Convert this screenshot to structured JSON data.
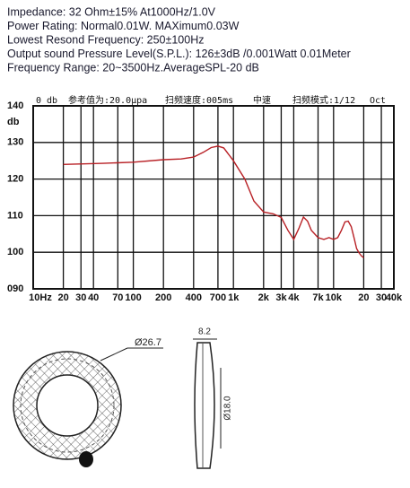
{
  "specs": [
    "Impedance: 32 Ohm±15% At1000Hz/1.0V",
    "Power Rating: Normal0.01W. MAXimum0.03W",
    "Lowest Resond Frequency: 250±100Hz",
    "Output sound Pressure Level(S.P.L.): 126±3dB /0.001Watt 0.01Meter",
    "Frequency Range: 20~3500Hz.AverageSPL-20 dB"
  ],
  "chart_data": {
    "type": "line",
    "log_x": true,
    "annotations": [
      "0 db",
      "参考值为:20.0μpa",
      "扫频速度:005ms",
      "中速",
      "扫频模式:1/12",
      "Oct"
    ],
    "ylabel": "db",
    "xlim": [
      10,
      40000
    ],
    "ylim": [
      90,
      140
    ],
    "xticks": [
      {
        "value": 10,
        "label": "10Hz"
      },
      20,
      30,
      40,
      70,
      100,
      200,
      400,
      700,
      {
        "value": 1000,
        "label": "1k"
      },
      {
        "value": 2000,
        "label": "2k"
      },
      {
        "value": 3000,
        "label": "3k"
      },
      {
        "value": 4000,
        "label": "4k"
      },
      {
        "value": 7000,
        "label": "7k"
      },
      {
        "value": 10000,
        "label": "10k"
      },
      {
        "value": 20000,
        "label": "20"
      },
      {
        "value": 30000,
        "label": "30"
      },
      {
        "value": 40000,
        "label": "40k"
      }
    ],
    "yticks": [
      {
        "value": 90,
        "label": "090"
      },
      100,
      110,
      120,
      130,
      140
    ],
    "grid": true,
    "x": [
      20,
      50,
      100,
      200,
      300,
      400,
      500,
      600,
      700,
      800,
      1000,
      1300,
      1600,
      2000,
      2500,
      3000,
      3500,
      4000,
      4500,
      5000,
      5500,
      6000,
      7000,
      8000,
      9000,
      10000,
      11000,
      12000,
      13000,
      14000,
      15000,
      16000,
      17000,
      18000,
      19000,
      20000
    ],
    "series": [
      {
        "color": "#b82025",
        "values": [
          124,
          124.3,
          124.6,
          125.3,
          125.5,
          126,
          127.3,
          128.6,
          129,
          128.5,
          125,
          120,
          114,
          111,
          110.5,
          109.5,
          106,
          103.5,
          106.5,
          109.6,
          108.5,
          106,
          104,
          103.5,
          104,
          103.5,
          104,
          106,
          108.3,
          108.5,
          107,
          104,
          101,
          99.8,
          99,
          98.5
        ]
      }
    ]
  },
  "drawing": {
    "labels": [
      "Ø26.7",
      "8.2",
      "Ø18.0"
    ]
  }
}
